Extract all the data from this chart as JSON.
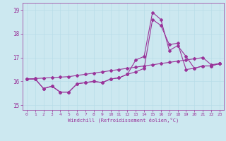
{
  "xlabel": "Windchill (Refroidissement éolien,°C)",
  "bg_color": "#cce8f0",
  "line_color": "#993399",
  "xlim": [
    -0.5,
    23.5
  ],
  "ylim": [
    14.8,
    19.3
  ],
  "yticks": [
    15,
    16,
    17,
    18,
    19
  ],
  "xticks": [
    0,
    1,
    2,
    3,
    4,
    5,
    6,
    7,
    8,
    9,
    10,
    11,
    12,
    13,
    14,
    15,
    16,
    17,
    18,
    19,
    20,
    21,
    22,
    23
  ],
  "grid_color": "#aaddee",
  "curve1_x": [
    0,
    1,
    2,
    3,
    4,
    5,
    6,
    7,
    8,
    9,
    10,
    11,
    12,
    13,
    14,
    15,
    16,
    17,
    18,
    19,
    20,
    21,
    22,
    23
  ],
  "curve1_y": [
    16.1,
    16.1,
    15.7,
    15.8,
    15.55,
    15.55,
    15.9,
    15.95,
    16.0,
    15.95,
    16.1,
    16.15,
    16.3,
    16.9,
    17.05,
    18.9,
    18.6,
    17.3,
    17.5,
    17.05,
    16.55,
    16.65,
    16.65,
    16.75
  ],
  "curve2_x": [
    0,
    1,
    2,
    3,
    4,
    5,
    6,
    7,
    8,
    9,
    10,
    11,
    12,
    13,
    14,
    15,
    16,
    17,
    18,
    19,
    20,
    21,
    22,
    23
  ],
  "curve2_y": [
    16.1,
    16.1,
    15.7,
    15.8,
    15.55,
    15.55,
    15.9,
    15.95,
    16.0,
    15.95,
    16.1,
    16.15,
    16.3,
    16.4,
    16.55,
    18.6,
    18.35,
    17.55,
    17.6,
    16.5,
    16.55,
    16.65,
    16.65,
    16.75
  ],
  "curve3_x": [
    0,
    1,
    2,
    3,
    4,
    5,
    6,
    7,
    8,
    9,
    10,
    11,
    12,
    13,
    14,
    15,
    16,
    17,
    18,
    19,
    20,
    21,
    22,
    23
  ],
  "curve3_y": [
    16.1,
    16.12,
    16.14,
    16.16,
    16.18,
    16.2,
    16.25,
    16.3,
    16.35,
    16.4,
    16.45,
    16.5,
    16.55,
    16.6,
    16.65,
    16.7,
    16.75,
    16.8,
    16.85,
    16.9,
    16.95,
    17.0,
    16.7,
    16.75
  ],
  "marker": "D",
  "markersize": 2.0,
  "linewidth": 0.8
}
